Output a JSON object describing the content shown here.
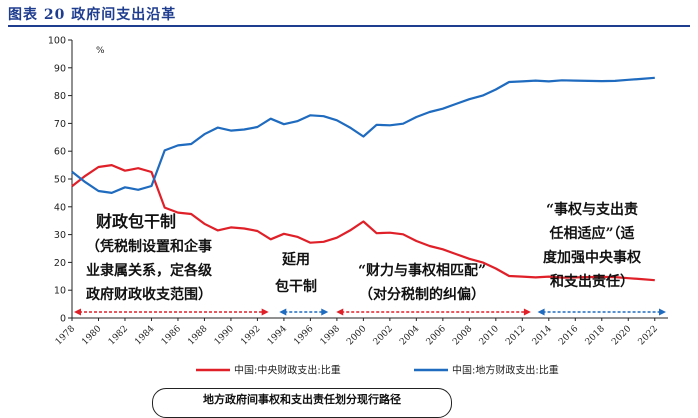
{
  "figure_title": "图表 20 政府间支出沿革",
  "footer_box_text": "地方政府间事权和支出责任划分现行路径",
  "colors": {
    "central": "#e02029",
    "local": "#1f6bbf",
    "arrow_red": "#e02029",
    "arrow_blue": "#1f6bbf",
    "title": "#1f3d8f"
  },
  "chart_data": {
    "type": "line",
    "ylabel": "%",
    "ylim": [
      0,
      100
    ],
    "yticks": [
      0,
      10,
      20,
      30,
      40,
      50,
      60,
      70,
      80,
      90,
      100
    ],
    "xlim": [
      1978,
      2023
    ],
    "xticks": [
      1978,
      1980,
      1982,
      1984,
      1986,
      1988,
      1990,
      1992,
      1994,
      1996,
      1998,
      2000,
      2002,
      2004,
      2006,
      2008,
      2010,
      2012,
      2014,
      2016,
      2018,
      2020,
      2022
    ],
    "x": [
      1978,
      1979,
      1980,
      1981,
      1982,
      1983,
      1984,
      1985,
      1986,
      1987,
      1988,
      1989,
      1990,
      1991,
      1992,
      1993,
      1994,
      1995,
      1996,
      1997,
      1998,
      1999,
      2000,
      2001,
      2002,
      2003,
      2004,
      2005,
      2006,
      2007,
      2008,
      2009,
      2010,
      2011,
      2012,
      2013,
      2014,
      2015,
      2016,
      2017,
      2018,
      2019,
      2020,
      2021,
      2022
    ],
    "series": [
      {
        "name": "中国:中央财政支出:比重",
        "color": "#e02029",
        "values": [
          47.4,
          51.1,
          54.3,
          55.0,
          53.0,
          53.9,
          52.5,
          39.7,
          37.9,
          37.4,
          33.9,
          31.5,
          32.6,
          32.2,
          31.3,
          28.3,
          30.3,
          29.2,
          27.1,
          27.4,
          28.9,
          31.5,
          34.7,
          30.5,
          30.7,
          30.1,
          27.7,
          25.9,
          24.7,
          23.0,
          21.3,
          20.0,
          17.8,
          15.1,
          14.9,
          14.6,
          14.9,
          14.5,
          14.6,
          14.7,
          14.8,
          14.7,
          14.3,
          14.0,
          13.6
        ]
      },
      {
        "name": "中国:地方财政支出:比重",
        "color": "#1f6bbf",
        "values": [
          52.6,
          48.9,
          45.7,
          45.0,
          47.0,
          46.1,
          47.5,
          60.3,
          62.1,
          62.6,
          66.1,
          68.5,
          67.4,
          67.8,
          68.7,
          71.7,
          69.7,
          70.8,
          72.9,
          72.6,
          71.1,
          68.5,
          65.3,
          69.5,
          69.3,
          69.9,
          72.3,
          74.1,
          75.3,
          77.0,
          78.7,
          80.0,
          82.2,
          84.9,
          85.1,
          85.4,
          85.1,
          85.5,
          85.4,
          85.3,
          85.2,
          85.3,
          85.7,
          86.0,
          86.4
        ]
      }
    ],
    "annotations": [
      {
        "id": "a1",
        "text": [
          "财政包干制",
          "（凭税制设置和企事",
          "业隶属关系，定各级",
          "政府财政收支范围）"
        ]
      },
      {
        "id": "a2",
        "text": [
          "延用",
          "包干制"
        ]
      },
      {
        "id": "a3",
        "text": [
          "“财力与事权相匹配”",
          "（对分税制的纠偏）"
        ]
      },
      {
        "id": "a4",
        "text": [
          "“事权与支出责",
          "任相适应”（适",
          "度加强中央事权",
          "和支出责任）"
        ]
      }
    ],
    "period_arrows": [
      {
        "from": 1978,
        "to": 1993,
        "color": "#e02029"
      },
      {
        "from": 1993.5,
        "to": 1997.5,
        "color": "#1f6bbf"
      },
      {
        "from": 1997.8,
        "to": 2012.8,
        "color": "#e02029"
      },
      {
        "from": 2013,
        "to": 2023,
        "color": "#1f6bbf"
      }
    ],
    "legend_position": "bottom"
  }
}
